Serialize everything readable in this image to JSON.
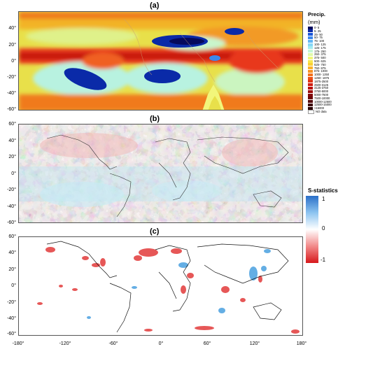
{
  "panels": [
    {
      "label": "(a)"
    },
    {
      "label": "(b)"
    },
    {
      "label": "(c)"
    }
  ],
  "lat_ticks": [
    "60°",
    "40°",
    "20°",
    "0°",
    "-20°",
    "-40°",
    "-60°"
  ],
  "lon_ticks": [
    "-180°",
    "-120°",
    "-60°",
    "0°",
    "60°",
    "120°",
    "180°"
  ],
  "precip_legend": {
    "title": "Precip.",
    "unit": "(mm)",
    "items": [
      {
        "label": "0- 5",
        "color": "#060a5c"
      },
      {
        "label": "5- 25",
        "color": "#0a2aa8"
      },
      {
        "label": "25- 50",
        "color": "#1a55d8"
      },
      {
        "label": "50- 75",
        "color": "#3c87ec"
      },
      {
        "label": "75- 100",
        "color": "#61b6f5"
      },
      {
        "label": "100- 125",
        "color": "#86d8f7"
      },
      {
        "label": "125- 175",
        "color": "#a3ecf0"
      },
      {
        "label": "175- 250",
        "color": "#c3f6d6"
      },
      {
        "label": "250- 375",
        "color": "#dff9a9"
      },
      {
        "label": "375- 500",
        "color": "#f2f67a"
      },
      {
        "label": "500- 625",
        "color": "#f8e74e"
      },
      {
        "label": "625- 750",
        "color": "#fbd135"
      },
      {
        "label": "750- 875",
        "color": "#fbb22a"
      },
      {
        "label": "875- 1000",
        "color": "#f89223"
      },
      {
        "label": "1000- 1250",
        "color": "#f3711d"
      },
      {
        "label": "1250- 1875",
        "color": "#eb5118"
      },
      {
        "label": "1875-2500",
        "color": "#e03314"
      },
      {
        "label": "2500-3125",
        "color": "#cf1d12"
      },
      {
        "label": "3125-3750",
        "color": "#b8110f"
      },
      {
        "label": "3750-5000",
        "color": "#9c0b0c"
      },
      {
        "label": "5000-7500",
        "color": "#82080b"
      },
      {
        "label": "7500-10000",
        "color": "#6a060a"
      },
      {
        "label": "10000-12500",
        "color": "#530509"
      },
      {
        "label": "12500-15000",
        "color": "#3e0407"
      },
      {
        "label": ">15000",
        "color": "#2a0305"
      },
      {
        "label": "NO data",
        "color": "#ffffff"
      }
    ]
  },
  "s_legend": {
    "title": "S-statistics",
    "max": "1",
    "mid": "0",
    "min": "-1"
  }
}
